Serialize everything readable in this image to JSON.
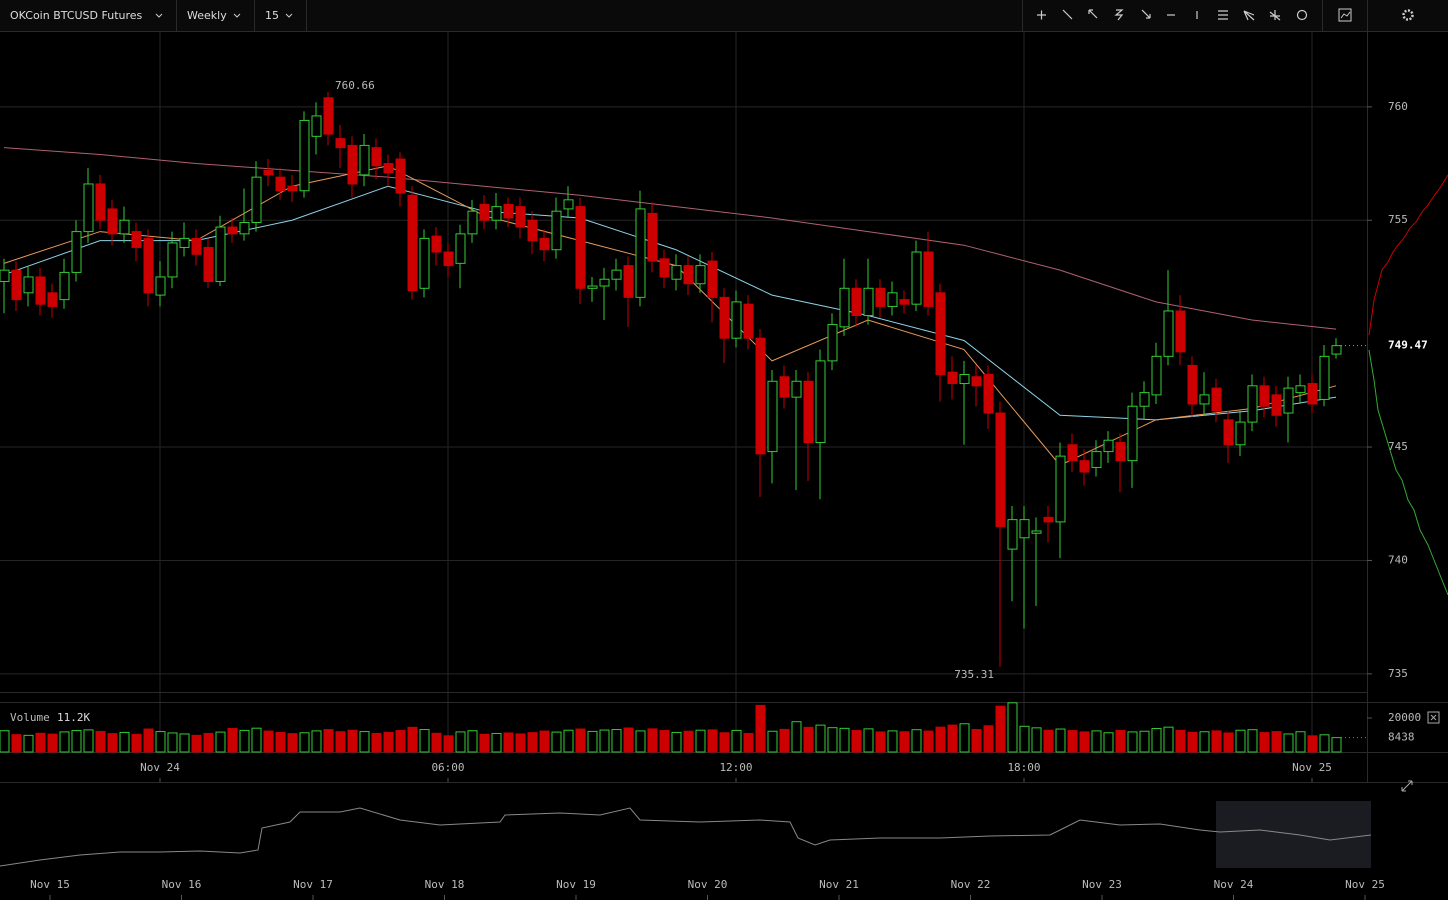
{
  "toolbar": {
    "symbol": "OKCoin BTCUSD Futures",
    "range": "Weekly",
    "interval": "15"
  },
  "chart_data": {
    "type": "candlestick",
    "categories": [
      null,
      null,
      null,
      null,
      null,
      null,
      null,
      null,
      null,
      null,
      null,
      null,
      null,
      "Nov 24",
      null,
      null,
      null,
      null,
      null,
      null,
      null,
      null,
      null,
      null,
      null,
      null,
      null,
      null,
      null,
      null,
      null,
      null,
      null,
      null,
      null,
      null,
      null,
      "06:00",
      null,
      null,
      null,
      null,
      null,
      null,
      null,
      null,
      null,
      null,
      null,
      null,
      null,
      null,
      null,
      null,
      null,
      null,
      null,
      null,
      null,
      null,
      null,
      "12:00",
      null,
      null,
      null,
      null,
      null,
      null,
      null,
      null,
      null,
      null,
      null,
      null,
      null,
      null,
      null,
      null,
      null,
      null,
      null,
      null,
      null,
      null,
      null,
      "18:00",
      null,
      null,
      null,
      null,
      null,
      null,
      null,
      null,
      null,
      null,
      null,
      null,
      null,
      null,
      null,
      null,
      null,
      null,
      null,
      null,
      null,
      null,
      null,
      "Nov 25",
      null,
      null
    ],
    "open": [
      752.3,
      752.8,
      751.8,
      752.5,
      751.8,
      751.5,
      752.7,
      754.5,
      756.6,
      755.5,
      754.4,
      754.5,
      754.2,
      751.7,
      752.5,
      753.8,
      754.2,
      753.8,
      752.3,
      754.7,
      754.4,
      754.9,
      757.2,
      756.9,
      756.5,
      756.3,
      758.7,
      760.4,
      758.6,
      758.3,
      757.0,
      758.2,
      757.5,
      757.7,
      756.1,
      752.0,
      754.3,
      753.6,
      753.1,
      754.4,
      755.7,
      755.0,
      755.7,
      755.6,
      755.0,
      754.2,
      753.7,
      755.5,
      755.6,
      752.0,
      752.1,
      752.4,
      753.0,
      751.6,
      755.3,
      753.3,
      752.4,
      753.0,
      752.2,
      753.2,
      751.6,
      749.8,
      751.3,
      749.8,
      744.8,
      748.1,
      747.2,
      747.9,
      745.2,
      748.8,
      750.3,
      752.0,
      750.8,
      752.0,
      751.2,
      751.5,
      751.3,
      753.6,
      751.8,
      748.3,
      747.8,
      748.1,
      748.2,
      746.5,
      740.5,
      741.0,
      741.2,
      741.9,
      741.7,
      745.1,
      744.4,
      744.1,
      744.8,
      745.2,
      744.4,
      746.8,
      747.3,
      749.0,
      751.0,
      748.6,
      746.9,
      747.6,
      746.2,
      745.1,
      746.1,
      747.7,
      747.3,
      746.5,
      747.4,
      747.8,
      747.1,
      749.1
    ],
    "high": [
      753.3,
      753.2,
      753.0,
      752.9,
      752.2,
      753.3,
      755.0,
      757.3,
      757.0,
      755.9,
      755.6,
      754.9,
      754.6,
      753.2,
      754.5,
      754.9,
      754.6,
      754.2,
      755.2,
      755.1,
      756.4,
      757.6,
      757.7,
      757.3,
      757.0,
      759.8,
      760.2,
      760.66,
      759.2,
      758.7,
      758.8,
      758.6,
      757.9,
      758.0,
      756.5,
      754.6,
      754.7,
      754.0,
      754.8,
      755.9,
      756.1,
      756.2,
      756.0,
      756.0,
      755.4,
      754.6,
      756.0,
      756.5,
      756.0,
      752.5,
      752.9,
      753.3,
      753.4,
      756.3,
      755.8,
      753.7,
      753.5,
      753.4,
      753.5,
      753.6,
      752.0,
      751.9,
      751.7,
      750.2,
      748.4,
      748.6,
      748.4,
      748.3,
      749.3,
      750.9,
      753.3,
      752.4,
      753.3,
      752.4,
      752.3,
      751.9,
      754.1,
      754.5,
      752.2,
      749.0,
      748.8,
      748.6,
      748.6,
      747.0,
      742.4,
      742.4,
      741.9,
      742.4,
      745.2,
      745.6,
      744.9,
      745.3,
      745.7,
      745.6,
      747.4,
      747.9,
      749.6,
      752.8,
      751.7,
      749.0,
      748.3,
      748.0,
      746.6,
      746.6,
      748.2,
      748.1,
      747.7,
      748.1,
      748.2,
      748.2,
      749.5,
      749.8
    ],
    "low": [
      750.9,
      751.0,
      751.2,
      750.8,
      750.7,
      751.1,
      752.3,
      754.0,
      754.6,
      753.9,
      754.0,
      753.2,
      751.2,
      751.2,
      752.0,
      753.4,
      753.0,
      752.0,
      752.1,
      754.0,
      754.1,
      754.5,
      756.5,
      755.9,
      755.8,
      756.0,
      757.9,
      758.3,
      757.3,
      756.0,
      756.5,
      756.8,
      756.5,
      755.6,
      751.5,
      751.6,
      753.0,
      752.5,
      752.0,
      754.0,
      754.6,
      754.6,
      754.7,
      754.2,
      753.5,
      753.2,
      753.3,
      755.1,
      751.3,
      751.4,
      750.6,
      751.9,
      750.3,
      751.2,
      752.7,
      752.0,
      751.9,
      751.7,
      751.8,
      750.5,
      748.7,
      749.4,
      749.3,
      742.8,
      743.4,
      746.7,
      743.1,
      743.5,
      742.7,
      748.4,
      749.9,
      750.3,
      750.4,
      750.7,
      750.8,
      750.9,
      751.0,
      750.8,
      747.0,
      747.1,
      745.1,
      746.8,
      745.8,
      735.31,
      738.2,
      737.0,
      738.0,
      740.8,
      740.1,
      743.9,
      743.3,
      743.7,
      744.3,
      743.0,
      743.2,
      746.2,
      746.9,
      748.6,
      748.6,
      746.3,
      746.4,
      746.1,
      744.3,
      744.6,
      745.7,
      746.3,
      745.9,
      745.2,
      746.9,
      746.5,
      746.8,
      748.9
    ],
    "close": [
      752.8,
      751.5,
      752.5,
      751.3,
      751.2,
      752.7,
      754.5,
      756.6,
      755.0,
      754.4,
      755.0,
      753.8,
      751.8,
      752.5,
      754.0,
      754.2,
      753.5,
      752.3,
      754.7,
      754.4,
      754.9,
      756.9,
      757.0,
      756.3,
      756.3,
      759.4,
      759.6,
      758.8,
      758.2,
      756.6,
      758.3,
      757.4,
      757.1,
      756.2,
      751.9,
      754.2,
      753.6,
      753.0,
      754.4,
      755.4,
      755.0,
      755.6,
      755.1,
      754.7,
      754.1,
      753.7,
      755.4,
      755.9,
      752.0,
      752.1,
      752.4,
      752.8,
      751.6,
      755.5,
      753.2,
      752.5,
      753.0,
      752.2,
      753.0,
      751.6,
      749.8,
      751.4,
      749.8,
      744.7,
      747.9,
      747.2,
      747.9,
      745.2,
      748.8,
      750.4,
      752.0,
      750.8,
      752.0,
      751.2,
      751.8,
      751.3,
      753.6,
      751.2,
      748.2,
      747.8,
      748.2,
      747.7,
      746.5,
      741.5,
      741.8,
      741.8,
      741.3,
      741.7,
      744.6,
      744.4,
      743.9,
      744.8,
      745.3,
      744.4,
      746.8,
      747.4,
      749.0,
      751.0,
      749.2,
      746.9,
      747.3,
      746.6,
      745.1,
      746.1,
      747.7,
      746.8,
      746.4,
      747.6,
      747.7,
      746.9,
      749.0,
      749.47
    ],
    "up_color": "#33cc33",
    "down_color": "#cc0000",
    "ylim": [
      734.2,
      763.3
    ],
    "yticks": [
      735,
      740,
      745,
      755,
      760
    ],
    "grid": true,
    "overlays": [
      {
        "color": "#b06070",
        "x": [
          0,
          8,
          16,
          24,
          32,
          40,
          48,
          56,
          64,
          72,
          80,
          88,
          96,
          104,
          111
        ],
        "values": [
          758.2,
          757.9,
          757.5,
          757.2,
          756.9,
          756.5,
          756.1,
          755.6,
          755.1,
          754.5,
          753.9,
          752.8,
          751.4,
          750.6,
          750.2
        ]
      },
      {
        "color": "#8fd3e8",
        "x": [
          0,
          8,
          16,
          24,
          32,
          40,
          48,
          56,
          64,
          72,
          80,
          88,
          96,
          104,
          111
        ],
        "values": [
          752.6,
          754.1,
          754.1,
          755.0,
          756.5,
          755.4,
          755.1,
          753.7,
          751.7,
          750.8,
          749.7,
          746.4,
          746.2,
          746.6,
          747.2
        ]
      },
      {
        "color": "#e89a5a",
        "x": [
          0,
          8,
          16,
          24,
          32,
          40,
          48,
          56,
          64,
          72,
          80,
          88,
          96,
          104,
          111
        ],
        "values": [
          753.1,
          754.5,
          754.1,
          756.5,
          757.4,
          755.2,
          754.1,
          753.0,
          748.8,
          750.6,
          749.3,
          744.2,
          746.2,
          746.7,
          747.7
        ]
      }
    ],
    "volume": {
      "name": "Volume",
      "readout": "11.2K",
      "ylim": [
        0,
        28800
      ],
      "yticks": [
        20000
      ],
      "values": [
        12500,
        10200,
        9800,
        11000,
        10500,
        11800,
        12600,
        13000,
        12100,
        10800,
        11500,
        10400,
        13500,
        12000,
        11200,
        10600,
        9800,
        10900,
        11700,
        13800,
        12700,
        14000,
        12300,
        11500,
        10800,
        11300,
        12400,
        13200,
        11900,
        12800,
        12000,
        10900,
        11500,
        12600,
        14500,
        13200,
        11000,
        9500,
        11800,
        12500,
        10400,
        10900,
        11200,
        10600,
        11400,
        12300,
        11700,
        12800,
        13500,
        12100,
        12900,
        13200,
        14100,
        12400,
        13600,
        12600,
        11500,
        12200,
        12800,
        13000,
        11300,
        12700,
        10900,
        27400,
        12200,
        13300,
        17800,
        14500,
        15800,
        14300,
        13900,
        12600,
        13600,
        11800,
        12400,
        11900,
        13100,
        12300,
        14600,
        15800,
        16600,
        13200,
        15400,
        26900,
        28900,
        15100,
        14200,
        12800,
        13500,
        12600,
        11800,
        12400,
        11300,
        12700,
        11800,
        12200,
        13800,
        14600,
        12700,
        11600,
        11900,
        12400,
        11200,
        12800,
        13100,
        11400,
        12000,
        10600,
        11900,
        9500,
        10100,
        8438
      ]
    }
  },
  "navigator": {
    "labels": [
      "Nov 15",
      "Nov 16",
      "Nov 17",
      "Nov 18",
      "Nov 19",
      "Nov 20",
      "Nov 21",
      "Nov 22",
      "Nov 23",
      "Nov 24",
      "Nov 25"
    ]
  }
}
